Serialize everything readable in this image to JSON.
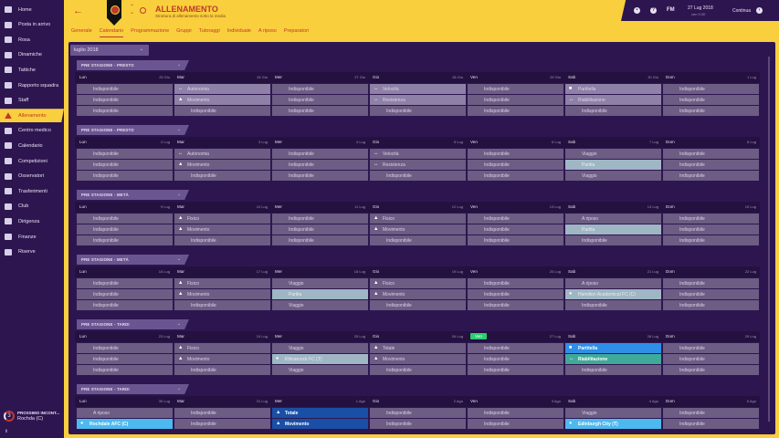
{
  "sidebar": {
    "items": [
      {
        "label": "Home",
        "icon": "home-icon"
      },
      {
        "label": "Posta in arrivo",
        "icon": "inbox-icon"
      },
      {
        "label": "Rosa",
        "icon": "squad-icon"
      },
      {
        "label": "Dinamiche",
        "icon": "dynamics-icon"
      },
      {
        "label": "Tattiche",
        "icon": "tactics-icon"
      },
      {
        "label": "Rapporto squadra",
        "icon": "report-icon"
      },
      {
        "label": "Staff",
        "icon": "staff-icon"
      },
      {
        "label": "Allenamento",
        "icon": "training-icon",
        "active": true
      },
      {
        "label": "Centro medico",
        "icon": "medical-icon"
      },
      {
        "label": "Calendario",
        "icon": "calendar-icon"
      },
      {
        "label": "Competizioni",
        "icon": "trophy-icon"
      },
      {
        "label": "Osservatori",
        "icon": "scout-icon"
      },
      {
        "label": "Trasferimenti",
        "icon": "transfer-icon"
      },
      {
        "label": "Club",
        "icon": "club-icon"
      },
      {
        "label": "Dirigenza",
        "icon": "board-icon"
      },
      {
        "label": "Finanze",
        "icon": "finance-icon"
      },
      {
        "label": "Riserve",
        "icon": "reserves-icon"
      }
    ],
    "next_match": {
      "count": "3",
      "label": "PROSSIMO INCONT...",
      "opponent": "Rochda (C)"
    },
    "footer": "fi"
  },
  "header": {
    "title": "ALLENAMENTO",
    "subtitle": "Struttura di allenamento sotto la media",
    "tabs": [
      "Generale",
      "Calendario",
      "Programmazione",
      "Gruppi",
      "Tutoraggi",
      "Individuale",
      "A riposo",
      "Preparatori"
    ],
    "active_tab": 1
  },
  "topbar": {
    "brand": "FM",
    "date": "27 Lug 2018",
    "time": "ven 9:30",
    "continue": "Continua",
    "help": "?"
  },
  "month_select": "luglio 2018",
  "days": [
    "Lun",
    "Mar",
    "Mer",
    "Gio",
    "Ven",
    "Sab",
    "Dom"
  ],
  "weeks": [
    {
      "label": "PRE STAGIONE - PRESTO",
      "dates": [
        "25 Giu",
        "26 Giu",
        "27 Giu",
        "28 Giu",
        "29 Giu",
        "30 Giu",
        "1 Lug"
      ],
      "cells": [
        [
          [
            "Indisponibile"
          ],
          [
            "Indisponibile"
          ],
          [
            "Indisponibile"
          ]
        ],
        [
          [
            "Autonomia",
            "↔",
            "light"
          ],
          [
            "Movimento",
            "▲",
            "light"
          ],
          [
            "Indisponibile"
          ]
        ],
        [
          [
            "Indisponibile"
          ],
          [
            "Indisponibile"
          ],
          [
            "Indisponibile"
          ]
        ],
        [
          [
            "Velocità",
            "↔",
            "light"
          ],
          [
            "Resistenza",
            "↔",
            "light"
          ],
          [
            "Indisponibile"
          ]
        ],
        [
          [
            "Indisponibile"
          ],
          [
            "Indisponibile"
          ],
          [
            "Indisponibile"
          ]
        ],
        [
          [
            "Partitella",
            "■",
            "light"
          ],
          [
            "Riabilitazione",
            "↔",
            "light"
          ],
          [
            "Indisponibile"
          ]
        ],
        [
          [
            "Indisponibile"
          ],
          [
            "Indisponibile"
          ],
          [
            "Indisponibile"
          ]
        ]
      ]
    },
    {
      "label": "PRE STAGIONE - PRESTO",
      "dates": [
        "2 Lug",
        "3 Lug",
        "4 Lug",
        "5 Lug",
        "6 Lug",
        "7 Lug",
        "8 Lug"
      ],
      "cells": [
        [
          [
            "Indisponibile"
          ],
          [
            "Indisponibile"
          ],
          [
            "Indisponibile"
          ]
        ],
        [
          [
            "Autonomia",
            "↔"
          ],
          [
            "Movimento",
            "▲"
          ],
          [
            "Indisponibile"
          ]
        ],
        [
          [
            "Indisponibile"
          ],
          [
            "Indisponibile"
          ],
          [
            "Indisponibile"
          ]
        ],
        [
          [
            "Velocità",
            "↔"
          ],
          [
            "Resistenza",
            "↔"
          ],
          [
            "Indisponibile"
          ]
        ],
        [
          [
            "Indisponibile"
          ],
          [
            "Indisponibile"
          ],
          [
            "Indisponibile"
          ]
        ],
        [
          [
            "Viaggio"
          ],
          [
            "Partita",
            "",
            "partita"
          ],
          [
            "Viaggio"
          ]
        ],
        [
          [
            "Indisponibile"
          ],
          [
            "Indisponibile"
          ],
          [
            "Indisponibile"
          ]
        ]
      ]
    },
    {
      "label": "PRE STAGIONE - METÀ",
      "dates": [
        "9 Lug",
        "10 Lug",
        "11 Lug",
        "12 Lug",
        "13 Lug",
        "14 Lug",
        "15 Lug"
      ],
      "cells": [
        [
          [
            "Indisponibile"
          ],
          [
            "Indisponibile"
          ],
          [
            "Indisponibile"
          ]
        ],
        [
          [
            "Fisico",
            "▲"
          ],
          [
            "Movimento",
            "▲"
          ],
          [
            "Indisponibile"
          ]
        ],
        [
          [
            "Indisponibile"
          ],
          [
            "Indisponibile"
          ],
          [
            "Indisponibile"
          ]
        ],
        [
          [
            "Fisico",
            "▲"
          ],
          [
            "Movimento",
            "▲"
          ],
          [
            "Indisponibile"
          ]
        ],
        [
          [
            "Indisponibile"
          ],
          [
            "Indisponibile"
          ],
          [
            "Indisponibile"
          ]
        ],
        [
          [
            "A riposo"
          ],
          [
            "Partita",
            "",
            "partita"
          ],
          [
            "Indisponibile"
          ]
        ],
        [
          [
            "Indisponibile"
          ],
          [
            "Indisponibile"
          ],
          [
            "Indisponibile"
          ]
        ]
      ]
    },
    {
      "label": "PRE STAGIONE - METÀ",
      "dates": [
        "16 Lug",
        "17 Lug",
        "18 Lug",
        "19 Lug",
        "20 Lug",
        "21 Lug",
        "22 Lug"
      ],
      "cells": [
        [
          [
            "Indisponibile"
          ],
          [
            "Indisponibile"
          ],
          [
            "Indisponibile"
          ]
        ],
        [
          [
            "Fisico",
            "▲"
          ],
          [
            "Movimento",
            "▲"
          ],
          [
            "Indisponibile"
          ]
        ],
        [
          [
            "Viaggio"
          ],
          [
            "Partita",
            "",
            "partita"
          ],
          [
            "Viaggio"
          ]
        ],
        [
          [
            "Fisico",
            "▲"
          ],
          [
            "Movimento",
            "▲"
          ],
          [
            "Indisponibile"
          ]
        ],
        [
          [
            "Indisponibile"
          ],
          [
            "Indisponibile"
          ],
          [
            "Indisponibile"
          ]
        ],
        [
          [
            "A riposo"
          ],
          [
            "Hamilton Academical FC (C)",
            "●",
            "partita"
          ],
          [
            "Indisponibile"
          ]
        ],
        [
          [
            "Indisponibile"
          ],
          [
            "Indisponibile"
          ],
          [
            "Indisponibile"
          ]
        ]
      ]
    },
    {
      "label": "PRE STAGIONE - TARDI",
      "today": 4,
      "today_label": "Ven",
      "dates": [
        "23 Lug",
        "24 Lug",
        "25 Lug",
        "26 Lug",
        "27 Lug",
        "28 Lug",
        "29 Lug"
      ],
      "cells": [
        [
          [
            "Indisponibile"
          ],
          [
            "Indisponibile"
          ],
          [
            "Indisponibile"
          ]
        ],
        [
          [
            "Fisico",
            "▲"
          ],
          [
            "Movimento",
            "▲"
          ],
          [
            "Indisponibile"
          ]
        ],
        [
          [
            "Viaggio"
          ],
          [
            "Kilmarnock FC (T)",
            "●",
            "partita"
          ],
          [
            "Viaggio"
          ]
        ],
        [
          [
            "Totale",
            "▲"
          ],
          [
            "Movimento",
            "▲"
          ],
          [
            "Indisponibile"
          ]
        ],
        [
          [
            "Indisponibile"
          ],
          [
            "Indisponibile"
          ],
          [
            "Indisponibile"
          ]
        ],
        [
          [
            "Partitella",
            "■",
            "blue"
          ],
          [
            "Riabilitazione",
            "↔",
            "teal"
          ],
          [
            "Indisponibile"
          ]
        ],
        [
          [
            "Indisponibile"
          ],
          [
            "Indisponibile"
          ],
          [
            "Indisponibile"
          ]
        ]
      ]
    },
    {
      "label": "PRE STAGIONE - TARDI",
      "dates": [
        "30 Lug",
        "31 Lug",
        "1 Ago",
        "2 Ago",
        "3 Ago",
        "4 Ago",
        "5 Ago"
      ],
      "cells": [
        [
          [
            "A riposo"
          ],
          [
            "Rochdale AFC (C)",
            "●",
            "lblue"
          ]
        ],
        [
          [
            "Indisponibile"
          ],
          [
            "Indisponibile"
          ]
        ],
        [
          [
            "Totale",
            "▲",
            "dblue"
          ],
          [
            "Movimento",
            "▲",
            "dblue"
          ]
        ],
        [
          [
            "Indisponibile"
          ],
          [
            "Indisponibile"
          ]
        ],
        [
          [
            "Indisponibile"
          ],
          [
            "Indisponibile"
          ]
        ],
        [
          [
            "Viaggio"
          ],
          [
            "Edinburgh City (T)",
            "●",
            "lblue"
          ]
        ],
        [
          [
            "Indisponibile"
          ],
          [
            "Indisponibile"
          ]
        ]
      ]
    }
  ]
}
